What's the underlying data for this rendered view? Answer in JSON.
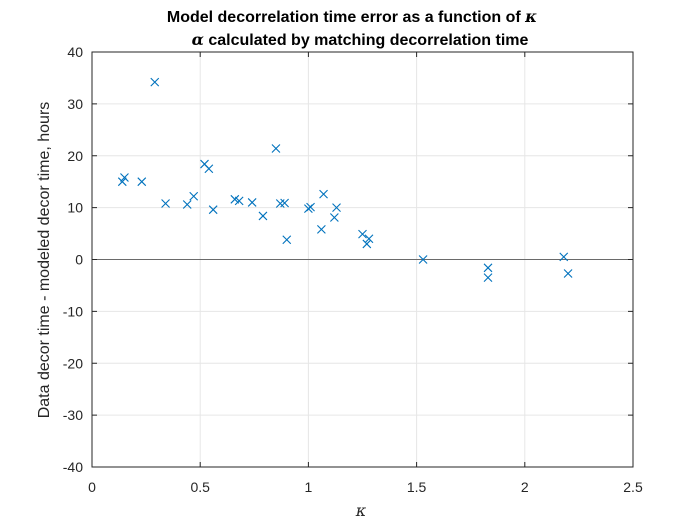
{
  "chart_data": {
    "type": "scatter",
    "title_line1_prefix": "Model decorrelation time error as a function of ",
    "title_line1_symbol": "κ",
    "title_line2_symbol": "α",
    "title_line2_suffix": " calculated by matching decorrelation time",
    "xlabel": "κ",
    "ylabel": "Data decor time - modeled decor time, hours",
    "xlim": [
      0,
      2.5
    ],
    "ylim": [
      -40,
      40
    ],
    "xticks": [
      0,
      0.5,
      1,
      1.5,
      2,
      2.5
    ],
    "xtick_labels": [
      "0",
      "0.5",
      "1",
      "1.5",
      "2",
      "2.5"
    ],
    "yticks": [
      -40,
      -30,
      -20,
      -10,
      0,
      10,
      20,
      30,
      40
    ],
    "ytick_labels": [
      "-40",
      "-30",
      "-20",
      "-10",
      "0",
      "10",
      "20",
      "30",
      "40"
    ],
    "grid": true,
    "zero_line": true,
    "marker": "x",
    "marker_color": "#0072BD",
    "points": [
      {
        "x": 0.14,
        "y": 15.0
      },
      {
        "x": 0.15,
        "y": 15.8
      },
      {
        "x": 0.23,
        "y": 15.0
      },
      {
        "x": 0.29,
        "y": 34.2
      },
      {
        "x": 0.34,
        "y": 10.8
      },
      {
        "x": 0.44,
        "y": 10.6
      },
      {
        "x": 0.47,
        "y": 12.2
      },
      {
        "x": 0.52,
        "y": 18.4
      },
      {
        "x": 0.54,
        "y": 17.5
      },
      {
        "x": 0.56,
        "y": 9.6
      },
      {
        "x": 0.66,
        "y": 11.6
      },
      {
        "x": 0.68,
        "y": 11.3
      },
      {
        "x": 0.74,
        "y": 11.0
      },
      {
        "x": 0.79,
        "y": 8.4
      },
      {
        "x": 0.85,
        "y": 21.4
      },
      {
        "x": 0.87,
        "y": 10.8
      },
      {
        "x": 0.89,
        "y": 10.9
      },
      {
        "x": 0.9,
        "y": 3.8
      },
      {
        "x": 1.0,
        "y": 9.8
      },
      {
        "x": 1.01,
        "y": 10.1
      },
      {
        "x": 1.06,
        "y": 5.8
      },
      {
        "x": 1.07,
        "y": 12.6
      },
      {
        "x": 1.12,
        "y": 8.1
      },
      {
        "x": 1.13,
        "y": 10.0
      },
      {
        "x": 1.25,
        "y": 4.9
      },
      {
        "x": 1.27,
        "y": 3.0
      },
      {
        "x": 1.28,
        "y": 4.0
      },
      {
        "x": 1.53,
        "y": 0.0
      },
      {
        "x": 1.83,
        "y": -1.6
      },
      {
        "x": 1.83,
        "y": -3.5
      },
      {
        "x": 2.18,
        "y": 0.5
      },
      {
        "x": 2.2,
        "y": -2.7
      }
    ]
  }
}
